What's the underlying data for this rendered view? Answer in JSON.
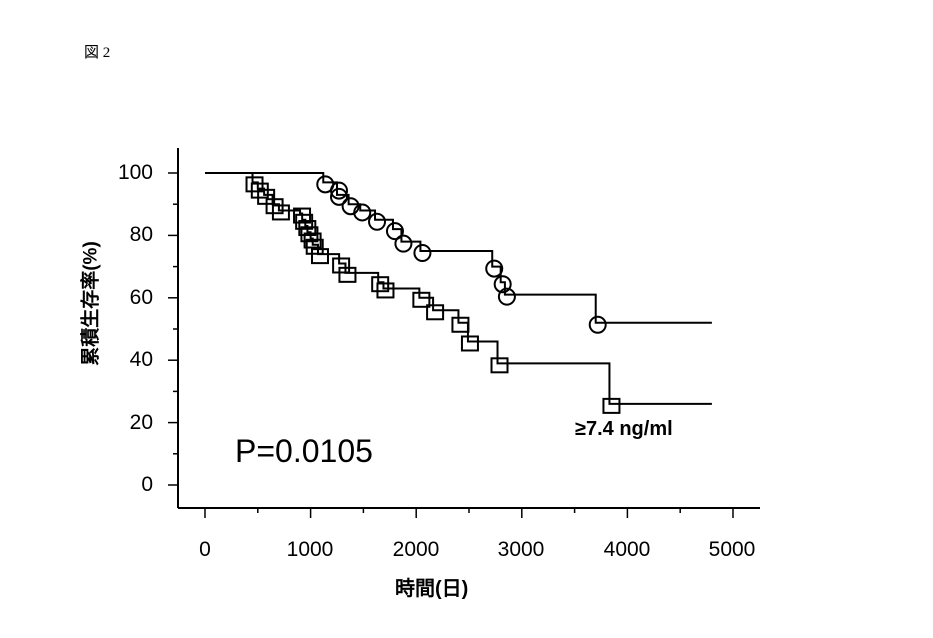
{
  "figure": {
    "label": "図 2"
  },
  "chart_data": {
    "type": "line",
    "subtype": "kaplan-meier step plot",
    "title": "",
    "xlabel": "時間(日)",
    "ylabel": "累積生存率(%)",
    "xlim": [
      0,
      5000
    ],
    "ylim": [
      0,
      100
    ],
    "x_ticks": [
      "0",
      "1000",
      "2000",
      "3000",
      "4000",
      "5000"
    ],
    "y_ticks": [
      "0",
      "20",
      "40",
      "60",
      "80",
      "100"
    ],
    "grid": false,
    "annotations": [
      {
        "text": "P=0.0105",
        "x": 300,
        "y": 10
      },
      {
        "text": "≥7.4 ng/ml",
        "x": 3500,
        "y": 20,
        "refers_to": "square series"
      }
    ],
    "series": [
      {
        "name": "< 7.4 ng/ml (circles)",
        "marker": "circle",
        "steps": [
          [
            0,
            100
          ],
          [
            1120,
            97
          ],
          [
            1250,
            95
          ],
          [
            1250,
            93
          ],
          [
            1360,
            90
          ],
          [
            1470,
            88
          ],
          [
            1610,
            85
          ],
          [
            1780,
            82
          ],
          [
            1860,
            78
          ],
          [
            2040,
            75
          ],
          [
            2720,
            70
          ],
          [
            2800,
            65
          ],
          [
            2840,
            61
          ],
          [
            3700,
            52
          ],
          [
            4800,
            52
          ]
        ],
        "censored_markers": [
          [
            1120,
            97
          ],
          [
            1250,
            95
          ],
          [
            1250,
            93
          ],
          [
            1360,
            90
          ],
          [
            1470,
            88
          ],
          [
            1610,
            85
          ],
          [
            1780,
            82
          ],
          [
            1860,
            78
          ],
          [
            2040,
            75
          ],
          [
            2720,
            70
          ],
          [
            2800,
            65
          ],
          [
            2840,
            61
          ],
          [
            3700,
            52
          ]
        ]
      },
      {
        "name": "≥7.4 ng/ml (squares)",
        "marker": "square",
        "steps": [
          [
            0,
            100
          ],
          [
            450,
            97
          ],
          [
            500,
            95
          ],
          [
            560,
            93
          ],
          [
            640,
            90
          ],
          [
            700,
            88
          ],
          [
            900,
            87
          ],
          [
            920,
            85
          ],
          [
            950,
            83
          ],
          [
            970,
            81
          ],
          [
            1000,
            79
          ],
          [
            1020,
            77
          ],
          [
            1070,
            74
          ],
          [
            1270,
            71
          ],
          [
            1330,
            68
          ],
          [
            1640,
            65
          ],
          [
            1690,
            63
          ],
          [
            2030,
            60
          ],
          [
            2160,
            56
          ],
          [
            2400,
            52
          ],
          [
            2490,
            46
          ],
          [
            2770,
            39
          ],
          [
            3830,
            26
          ],
          [
            4800,
            26
          ]
        ],
        "censored_markers": [
          [
            450,
            97
          ],
          [
            500,
            95
          ],
          [
            560,
            93
          ],
          [
            640,
            90
          ],
          [
            700,
            88
          ],
          [
            900,
            87
          ],
          [
            920,
            85
          ],
          [
            950,
            83
          ],
          [
            970,
            81
          ],
          [
            1000,
            79
          ],
          [
            1020,
            77
          ],
          [
            1070,
            74
          ],
          [
            1270,
            71
          ],
          [
            1330,
            68
          ],
          [
            1640,
            65
          ],
          [
            1690,
            63
          ],
          [
            2030,
            60
          ],
          [
            2160,
            56
          ],
          [
            2400,
            52
          ],
          [
            2490,
            46
          ],
          [
            2770,
            39
          ],
          [
            3830,
            26
          ]
        ]
      }
    ]
  },
  "labels": {
    "p_value": "P=0.0105",
    "group_annotation": "≥7.4 ng/ml",
    "y_axis": "累積生存率(%)",
    "x_axis": "時間(日)",
    "y_ticks": [
      "100",
      "80",
      "60",
      "40",
      "20",
      "0"
    ],
    "x_ticks": [
      "0",
      "1000",
      "2000",
      "3000",
      "4000",
      "5000"
    ]
  }
}
